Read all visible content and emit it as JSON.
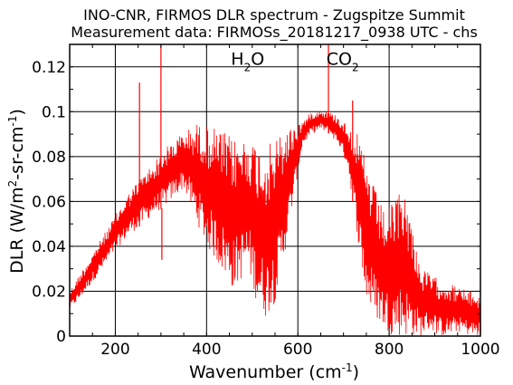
{
  "chart_data": {
    "type": "line",
    "title": "INO-CNR, FIRMOS DLR spectrum - Zugspitze Summit",
    "subtitle": "Measurement data: FIRMOSs_20181217_0938 UTC - chs",
    "xlabel": {
      "text": "Wavenumber (cm",
      "sup": "-1",
      "tail": ")"
    },
    "ylabel": {
      "text_a": "DLR (W/m",
      "sup_a": "2",
      "text_b": "-sr-cm",
      "sup_b": "-1",
      "tail": ")"
    },
    "xlim": [
      100,
      1000
    ],
    "ylim": [
      0,
      0.13
    ],
    "xticks": [
      200,
      400,
      600,
      800,
      1000
    ],
    "xtick_labels": [
      "200",
      "400",
      "600",
      "800",
      "1000"
    ],
    "yticks": [
      0,
      0.02,
      0.04,
      0.06,
      0.08,
      0.1,
      0.12
    ],
    "ytick_labels": [
      "0",
      "0.02",
      "0.04",
      "0.06",
      "0.08",
      "0.1",
      "0.12"
    ],
    "grid": true,
    "annotations": [
      {
        "text": "H",
        "sub": "2",
        "tail": "O",
        "x": 490,
        "y": 0.121
      },
      {
        "text": "CO",
        "sub": "2",
        "tail": "",
        "x": 698,
        "y": 0.121
      }
    ],
    "series": [
      {
        "color": "#ff0000",
        "envelope": {
          "x": [
            100,
            120,
            150,
            180,
            200,
            230,
            260,
            290,
            320,
            350,
            380,
            400,
            430,
            460,
            490,
            510,
            530,
            550,
            570,
            590,
            610,
            630,
            650,
            670,
            690,
            710,
            730,
            750,
            770,
            790,
            810,
            830,
            850,
            870,
            890,
            910,
            930,
            950,
            980,
            1000
          ],
          "upper": [
            0.02,
            0.027,
            0.037,
            0.047,
            0.054,
            0.064,
            0.072,
            0.079,
            0.086,
            0.091,
            0.095,
            0.094,
            0.092,
            0.088,
            0.089,
            0.086,
            0.084,
            0.088,
            0.092,
            0.094,
            0.096,
            0.1,
            0.101,
            0.1,
            0.098,
            0.094,
            0.09,
            0.078,
            0.065,
            0.055,
            0.06,
            0.068,
            0.05,
            0.03,
            0.028,
            0.025,
            0.024,
            0.022,
            0.02,
            0.018
          ],
          "lower": [
            0.012,
            0.016,
            0.024,
            0.032,
            0.038,
            0.045,
            0.05,
            0.055,
            0.06,
            0.066,
            0.05,
            0.04,
            0.03,
            0.02,
            0.03,
            0.015,
            0.008,
            0.015,
            0.035,
            0.06,
            0.085,
            0.09,
            0.092,
            0.09,
            0.085,
            0.075,
            0.045,
            0.015,
            0.008,
            0.003,
            0.0,
            0.0,
            0.0,
            0.0,
            0.003,
            0.0,
            0.0,
            0.002,
            0.0,
            0.0
          ]
        },
        "spikes": [
          {
            "x": 253,
            "y": 0.113
          },
          {
            "x": 300,
            "y": 0.13
          },
          {
            "x": 302,
            "y": 0.034
          },
          {
            "x": 667,
            "y": 0.13
          },
          {
            "x": 720,
            "y": 0.105
          }
        ]
      }
    ]
  }
}
